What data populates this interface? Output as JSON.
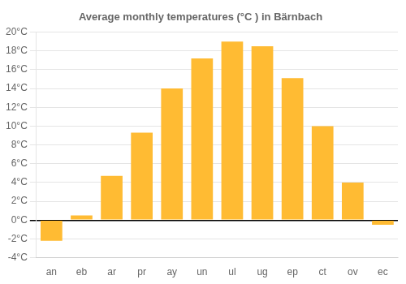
{
  "chart_data": {
    "type": "bar",
    "title": "Average monthly temperatures (°C ) in Bärnbach",
    "categories": [
      "an",
      "eb",
      "ar",
      "pr",
      "ay",
      "un",
      "ul",
      "ug",
      "ep",
      "ct",
      "ov",
      "ec"
    ],
    "values": [
      -2.2,
      0.5,
      4.7,
      9.3,
      14.0,
      17.2,
      19.0,
      18.5,
      15.1,
      10.0,
      4.0,
      -0.5
    ],
    "color": "#FFBB33",
    "ylim": [
      -4,
      20
    ],
    "yticks": [
      {
        "value": -4,
        "label": "-4°C"
      },
      {
        "value": -2,
        "label": "-2°C"
      },
      {
        "value": 0,
        "label": "0°C"
      },
      {
        "value": 2,
        "label": "2°C"
      },
      {
        "value": 4,
        "label": "4°C"
      },
      {
        "value": 6,
        "label": "6°C"
      },
      {
        "value": 8,
        "label": "8°C"
      },
      {
        "value": 10,
        "label": "10°C"
      },
      {
        "value": 12,
        "label": "12°C"
      },
      {
        "value": 14,
        "label": "14°C"
      },
      {
        "value": 16,
        "label": "16°C"
      },
      {
        "value": 18,
        "label": "18°C"
      },
      {
        "value": 20,
        "label": "20°C"
      }
    ],
    "grid": true
  }
}
